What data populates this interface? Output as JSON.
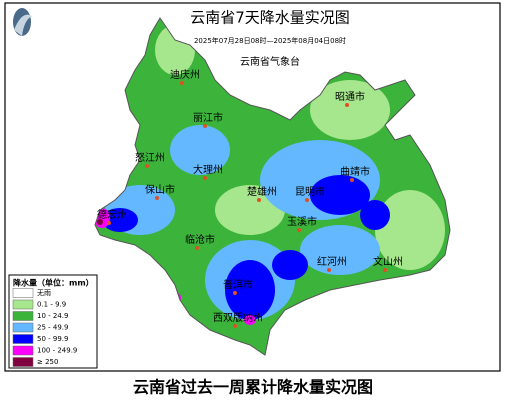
{
  "header": {
    "title": "云南省7天降水量实况图",
    "subtitle": "2025年07月28日08时—2025年08月04日08时",
    "organization": "云南省气象台"
  },
  "cities": [
    "迪庆州",
    "丽江市",
    "怒江州",
    "大理州",
    "保山市",
    "德宏州",
    "临沧市",
    "楚雄州",
    "昆明市",
    "曲靖市",
    "玉溪市",
    "普洱市",
    "红河州",
    "文山州",
    "西双版纳州",
    "昭通市"
  ],
  "legend": {
    "title": "降水量（单位：mm）",
    "items": [
      {
        "label": "无雨",
        "color": "#ffffff"
      },
      {
        "label": "0.1 - 9.9",
        "color": "#a6e68c"
      },
      {
        "label": "10 - 24.9",
        "color": "#3cb43c"
      },
      {
        "label": "25 - 49.9",
        "color": "#63b8ff"
      },
      {
        "label": "50 - 99.9",
        "color": "#0000fe"
      },
      {
        "label": "100 - 249.9",
        "color": "#fa00fa"
      },
      {
        "label": "≥ 250",
        "color": "#800040"
      }
    ]
  },
  "caption": "云南省过去一周累计降水量实况图"
}
